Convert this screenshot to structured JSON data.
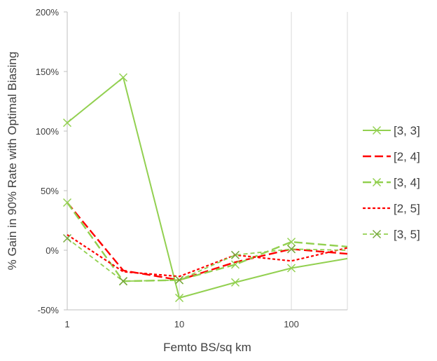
{
  "chart_data": {
    "type": "line",
    "title": "",
    "xlabel": "Femto BS/sq km",
    "ylabel": "% Gain in 90% Rate with Optimal Biasing",
    "x_scale": "log",
    "xlim": [
      1,
      316
    ],
    "ylim": [
      -50,
      200
    ],
    "x_ticks": [
      1,
      10,
      100
    ],
    "x_tick_labels": [
      "1",
      "10",
      "100"
    ],
    "y_ticks": [
      -50,
      0,
      50,
      100,
      150,
      200
    ],
    "y_tick_labels": [
      "-50%",
      "0%",
      "50%",
      "100%",
      "150%",
      "200%"
    ],
    "grid": "vertical",
    "legend_position": "right",
    "x": [
      1,
      3.16,
      10,
      31.6,
      100,
      316
    ],
    "series": [
      {
        "name": "[3, 3]",
        "values": [
          107,
          145,
          -40,
          -27,
          -15,
          -7
        ],
        "color": "#92d050",
        "dash": "solid",
        "marker": "x"
      },
      {
        "name": "[2, 4]",
        "values": [
          40,
          -17,
          -25,
          -10,
          1,
          -3
        ],
        "color": "#ff0000",
        "dash": "longdash",
        "marker": "none"
      },
      {
        "name": "[3, 4]",
        "values": [
          40,
          -26,
          -25,
          -12,
          7,
          3
        ],
        "color": "#92d050",
        "dash": "longdash",
        "marker": "x"
      },
      {
        "name": "[2, 5]",
        "values": [
          13,
          -18,
          -22,
          -4,
          -9,
          2
        ],
        "color": "#ff0000",
        "dash": "dotted",
        "marker": "none"
      },
      {
        "name": "[3, 5]",
        "values": [
          10,
          -26,
          -25,
          -4,
          1,
          0
        ],
        "color": "#92d050",
        "dash": "shortdash",
        "marker": "x",
        "marker_color": "#76a83c"
      }
    ]
  }
}
